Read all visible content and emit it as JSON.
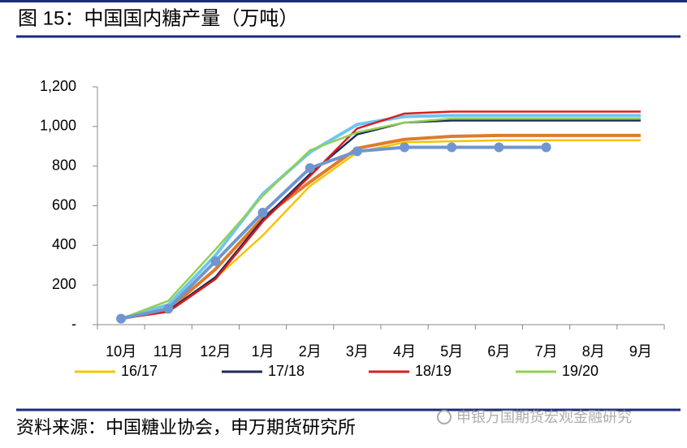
{
  "chart_data": {
    "type": "line",
    "title": "图 15：中国国内糖产量（万吨）",
    "source": "资料来源：中国糖业协会，申万期货研究所",
    "watermark": "申银万国期货宏观金融研究",
    "categories": [
      "10月",
      "11月",
      "12月",
      "1月",
      "2月",
      "3月",
      "4月",
      "5月",
      "6月",
      "7月",
      "8月",
      "9月"
    ],
    "ylim": [
      0,
      1200
    ],
    "yticks": [
      {
        "value": 0,
        "label": "-"
      },
      200,
      400,
      600,
      800,
      {
        "value": 1000,
        "label": "1,000"
      },
      {
        "value": 1200,
        "label": "1,200"
      }
    ],
    "series": [
      {
        "color": "#e07b2a",
        "values": [
          30,
          75,
          280,
          540,
          720,
          890,
          935,
          950,
          955,
          955,
          955,
          955
        ]
      },
      {
        "color": "#6fc6ef",
        "values": [
          30,
          100,
          350,
          660,
          870,
          1010,
          1050,
          1055,
          1055,
          1055,
          1055,
          1055
        ]
      },
      {
        "name": "16/17",
        "color": "#f5c400",
        "values": [
          30,
          70,
          235,
          450,
          700,
          870,
          920,
          925,
          930,
          930,
          930,
          930
        ]
      },
      {
        "name": "17/18",
        "color": "#1f2a5c",
        "values": [
          30,
          70,
          240,
          530,
          760,
          960,
          1020,
          1030,
          1030,
          1030,
          1030,
          1030
        ]
      },
      {
        "name": "18/19",
        "color": "#d91e1e",
        "values": [
          30,
          65,
          230,
          520,
          750,
          990,
          1065,
          1075,
          1075,
          1075,
          1075,
          1075
        ]
      },
      {
        "name": "19/20",
        "color": "#92d050",
        "values": [
          30,
          120,
          380,
          650,
          880,
          970,
          1020,
          1040,
          1040,
          1040,
          1040,
          1040
        ]
      },
      {
        "color": "#6f96cf",
        "marker": true,
        "values": [
          30,
          80,
          320,
          565,
          790,
          875,
          895,
          895,
          895,
          895,
          null,
          null
        ]
      }
    ]
  }
}
